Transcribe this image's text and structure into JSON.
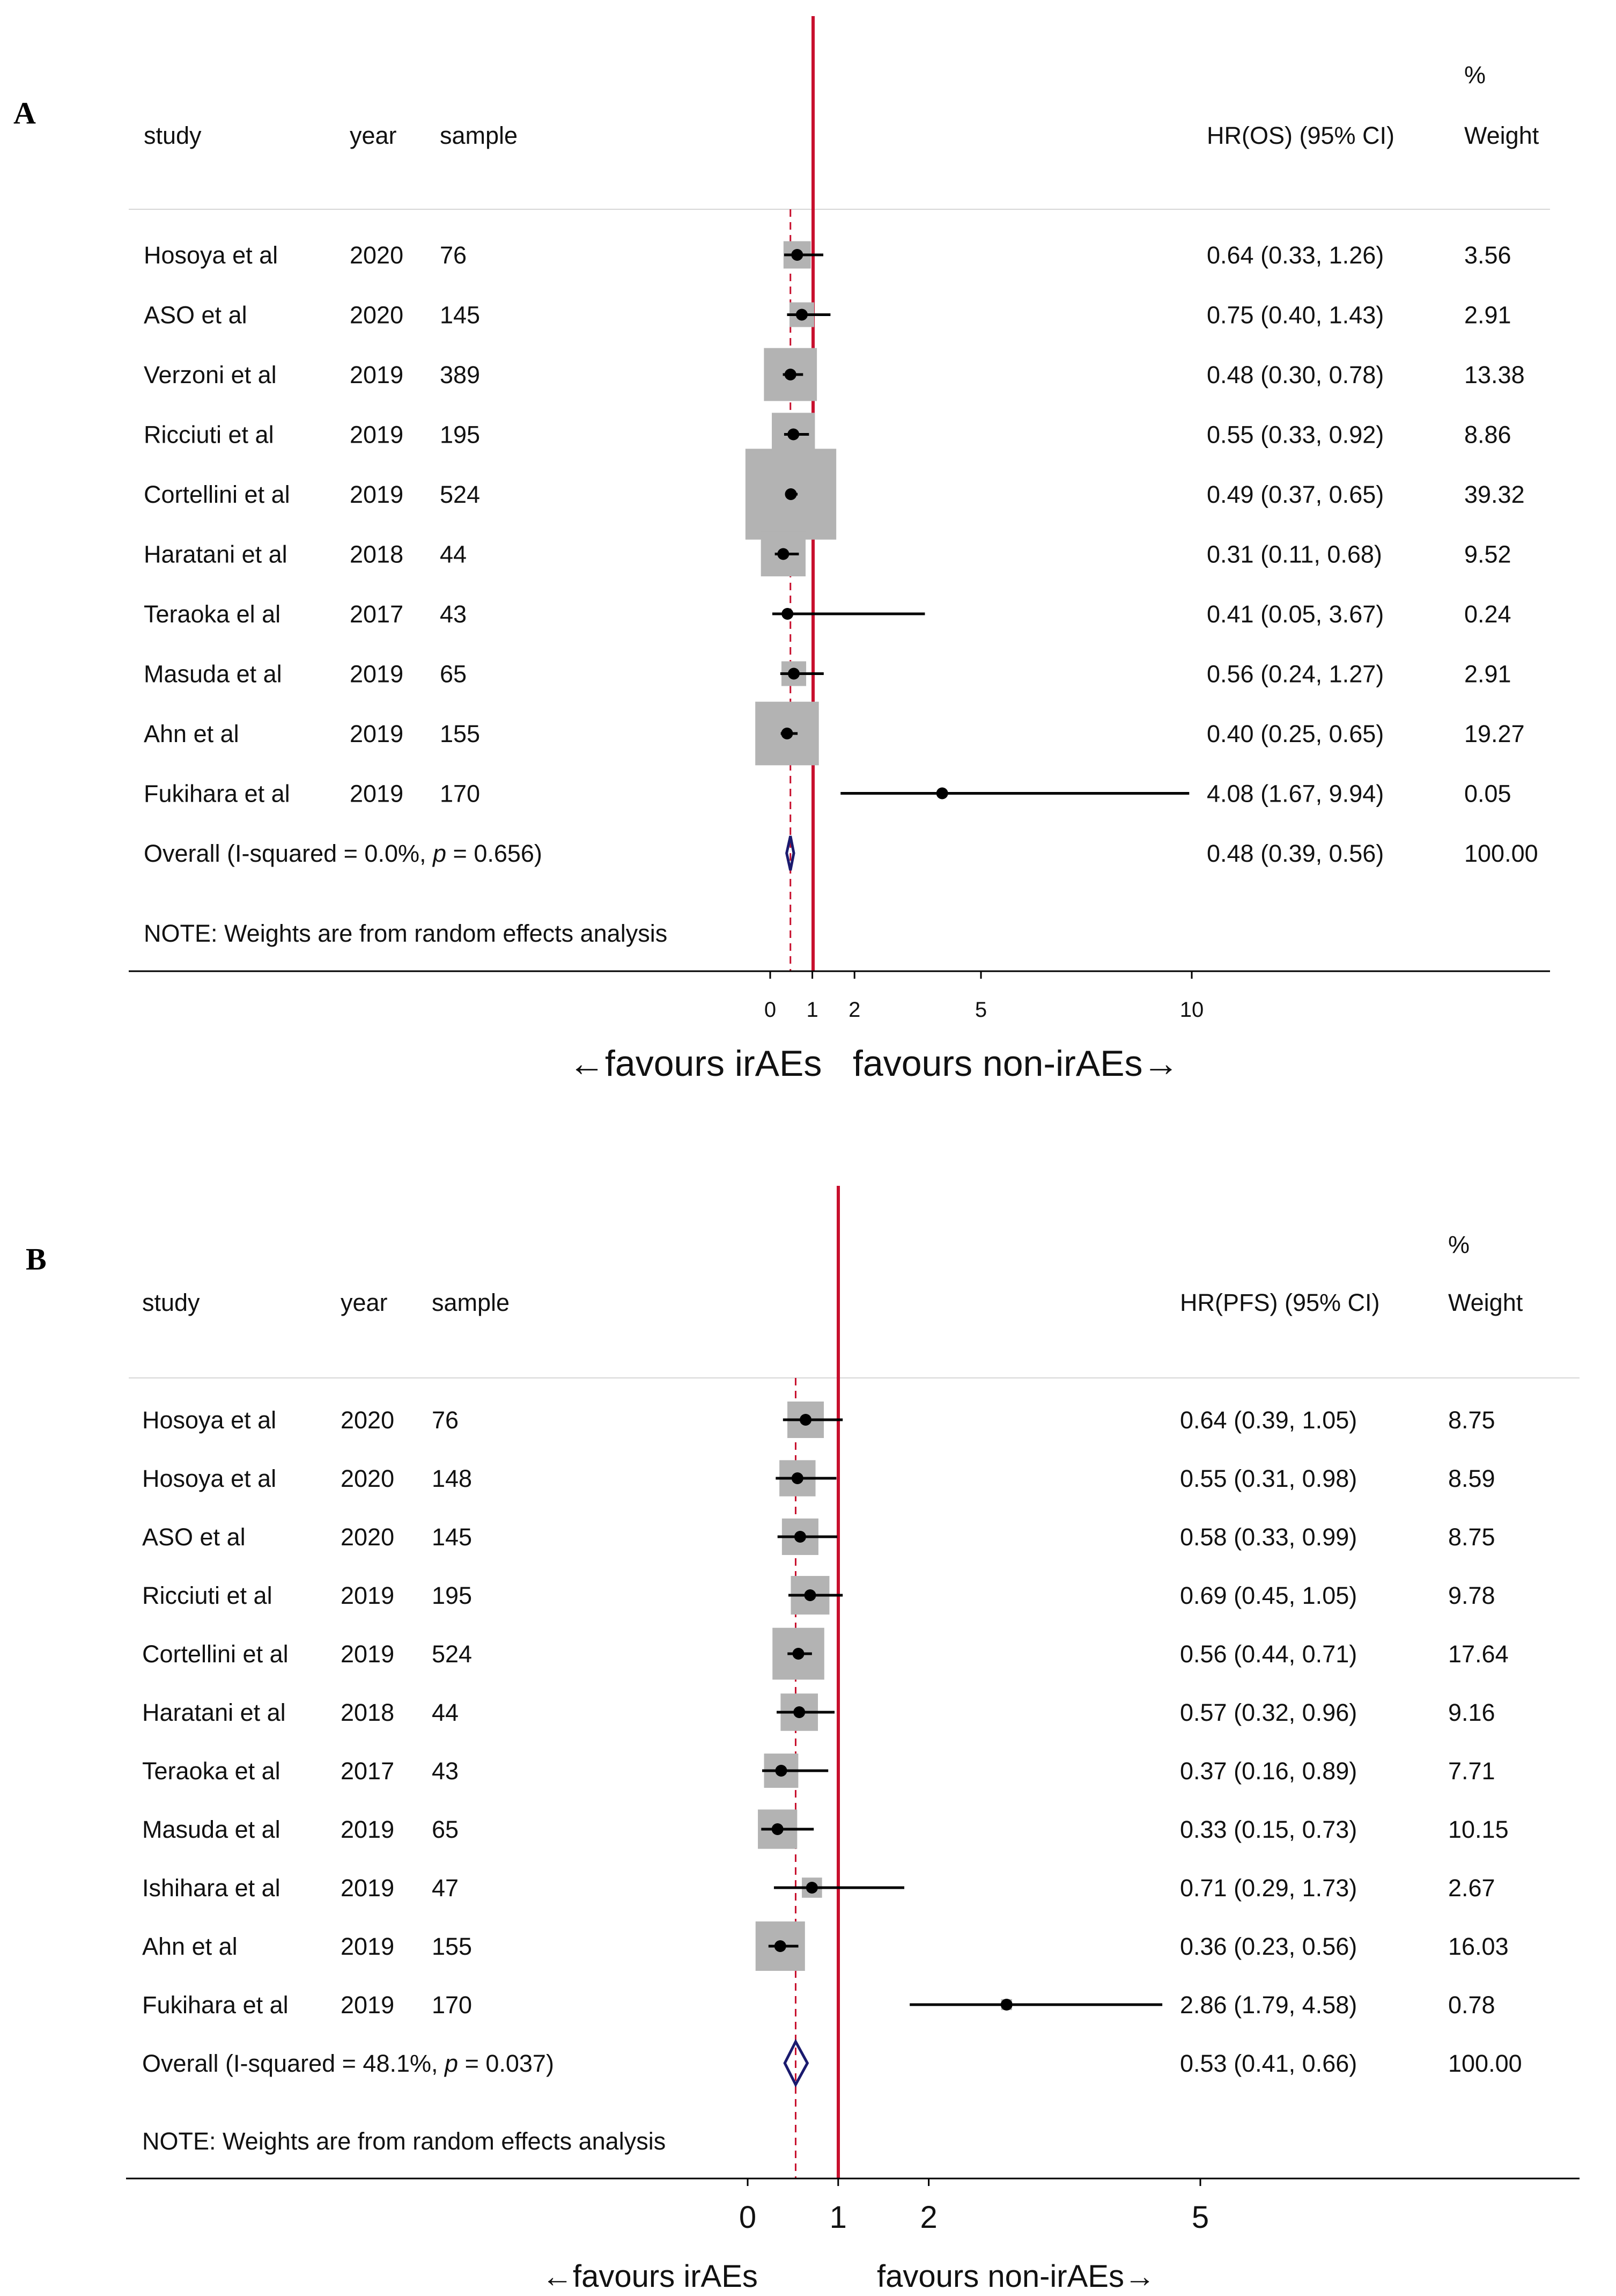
{
  "colors": {
    "null_line": "#c8102e",
    "overall_line": "#c8102e",
    "box": "#b3b3b3",
    "point": "#000000",
    "diamond": "#1a1a6e",
    "text": "#111111"
  },
  "chart_data": [
    {
      "type": "forest",
      "panel_label": "A",
      "header": {
        "study": "study",
        "year": "year",
        "sample": "sample",
        "estimate": "HR(OS) (95% CI)",
        "weight_line1": "%",
        "weight_line2": "Weight"
      },
      "rows": [
        {
          "study": "Hosoya et al",
          "year": "2020",
          "sample": "76",
          "hr": 0.64,
          "lower": 0.33,
          "upper": 1.26,
          "ci_text": "0.64 (0.33, 1.26)",
          "weight": 3.56,
          "weight_text": "3.56"
        },
        {
          "study": "ASO et al",
          "year": "2020",
          "sample": "145",
          "hr": 0.75,
          "lower": 0.4,
          "upper": 1.43,
          "ci_text": "0.75 (0.40, 1.43)",
          "weight": 2.91,
          "weight_text": "2.91"
        },
        {
          "study": "Verzoni et al",
          "year": "2019",
          "sample": "389",
          "hr": 0.48,
          "lower": 0.3,
          "upper": 0.78,
          "ci_text": "0.48 (0.30, 0.78)",
          "weight": 13.38,
          "weight_text": "13.38"
        },
        {
          "study": "Ricciuti et al",
          "year": "2019",
          "sample": "195",
          "hr": 0.55,
          "lower": 0.33,
          "upper": 0.92,
          "ci_text": "0.55 (0.33, 0.92)",
          "weight": 8.86,
          "weight_text": "8.86"
        },
        {
          "study": "Cortellini et al",
          "year": "2019",
          "sample": "524",
          "hr": 0.49,
          "lower": 0.37,
          "upper": 0.65,
          "ci_text": "0.49 (0.37, 0.65)",
          "weight": 39.32,
          "weight_text": "39.32"
        },
        {
          "study": "Haratani et al",
          "year": "2018",
          "sample": "44",
          "hr": 0.31,
          "lower": 0.11,
          "upper": 0.68,
          "ci_text": "0.31 (0.11, 0.68)",
          "weight": 9.52,
          "weight_text": "9.52"
        },
        {
          "study": "Teraoka el al",
          "year": "2017",
          "sample": "43",
          "hr": 0.41,
          "lower": 0.05,
          "upper": 3.67,
          "ci_text": "0.41 (0.05, 3.67)",
          "weight": 0.24,
          "weight_text": "0.24"
        },
        {
          "study": "Masuda et al",
          "year": "2019",
          "sample": "65",
          "hr": 0.56,
          "lower": 0.24,
          "upper": 1.27,
          "ci_text": "0.56 (0.24, 1.27)",
          "weight": 2.91,
          "weight_text": "2.91"
        },
        {
          "study": "Ahn et al",
          "year": "2019",
          "sample": "155",
          "hr": 0.4,
          "lower": 0.25,
          "upper": 0.65,
          "ci_text": "0.40 (0.25, 0.65)",
          "weight": 19.27,
          "weight_text": "19.27"
        },
        {
          "study": "Fukihara et al",
          "year": "2019",
          "sample": "170",
          "hr": 4.08,
          "lower": 1.67,
          "upper": 9.94,
          "ci_text": "4.08 (1.67, 9.94)",
          "weight": 0.05,
          "weight_text": "0.05"
        }
      ],
      "overall": {
        "label_prefix": "Overall  (I-squared = 0.0%, ",
        "label_p": "p",
        "label_suffix": " = 0.656)",
        "hr": 0.48,
        "lower": 0.39,
        "upper": 0.56,
        "ci_text": "0.48 (0.39, 0.56)",
        "weight_text": "100.00"
      },
      "note": "NOTE: Weights are from random effects analysis",
      "x_ticks": [
        "0",
        "1",
        "2",
        "5",
        "10"
      ],
      "x_tick_values": [
        0,
        1,
        2,
        5,
        10
      ],
      "xlim": [
        0,
        10
      ],
      "null_value": 1,
      "favours_left": "←favours irAEs",
      "favours_right": "favours non-irAEs→"
    },
    {
      "type": "forest",
      "panel_label": "B",
      "header": {
        "study": "study",
        "year": "year",
        "sample": "sample",
        "estimate": "HR(PFS) (95% CI)",
        "weight_line1": "%",
        "weight_line2": "Weight"
      },
      "rows": [
        {
          "study": "Hosoya et al",
          "year": "2020",
          "sample": "76",
          "hr": 0.64,
          "lower": 0.39,
          "upper": 1.05,
          "ci_text": "0.64 (0.39, 1.05)",
          "weight": 8.75,
          "weight_text": "8.75"
        },
        {
          "study": "Hosoya et al",
          "year": "2020",
          "sample": "148",
          "hr": 0.55,
          "lower": 0.31,
          "upper": 0.98,
          "ci_text": "0.55 (0.31, 0.98)",
          "weight": 8.59,
          "weight_text": "8.59"
        },
        {
          "study": "ASO et al",
          "year": "2020",
          "sample": "145",
          "hr": 0.58,
          "lower": 0.33,
          "upper": 0.99,
          "ci_text": "0.58 (0.33, 0.99)",
          "weight": 8.75,
          "weight_text": "8.75"
        },
        {
          "study": "Ricciuti et al",
          "year": "2019",
          "sample": "195",
          "hr": 0.69,
          "lower": 0.45,
          "upper": 1.05,
          "ci_text": "0.69 (0.45, 1.05)",
          "weight": 9.78,
          "weight_text": "9.78"
        },
        {
          "study": "Cortellini et al",
          "year": "2019",
          "sample": "524",
          "hr": 0.56,
          "lower": 0.44,
          "upper": 0.71,
          "ci_text": "0.56 (0.44, 0.71)",
          "weight": 17.64,
          "weight_text": "17.64"
        },
        {
          "study": "Haratani et al",
          "year": "2018",
          "sample": "44",
          "hr": 0.57,
          "lower": 0.32,
          "upper": 0.96,
          "ci_text": "0.57 (0.32, 0.96)",
          "weight": 9.16,
          "weight_text": "9.16"
        },
        {
          "study": "Teraoka et al",
          "year": "2017",
          "sample": "43",
          "hr": 0.37,
          "lower": 0.16,
          "upper": 0.89,
          "ci_text": "0.37 (0.16, 0.89)",
          "weight": 7.71,
          "weight_text": "7.71"
        },
        {
          "study": "Masuda et al",
          "year": "2019",
          "sample": "65",
          "hr": 0.33,
          "lower": 0.15,
          "upper": 0.73,
          "ci_text": "0.33 (0.15, 0.73)",
          "weight": 10.15,
          "weight_text": "10.15"
        },
        {
          "study": "Ishihara et al",
          "year": "2019",
          "sample": "47",
          "hr": 0.71,
          "lower": 0.29,
          "upper": 1.73,
          "ci_text": "0.71 (0.29, 1.73)",
          "weight": 2.67,
          "weight_text": "2.67"
        },
        {
          "study": "Ahn et al",
          "year": "2019",
          "sample": "155",
          "hr": 0.36,
          "lower": 0.23,
          "upper": 0.56,
          "ci_text": "0.36 (0.23, 0.56)",
          "weight": 16.03,
          "weight_text": "16.03"
        },
        {
          "study": "Fukihara et al",
          "year": "2019",
          "sample": "170",
          "hr": 2.86,
          "lower": 1.79,
          "upper": 4.58,
          "ci_text": "2.86 (1.79, 4.58)",
          "weight": 0.78,
          "weight_text": "0.78"
        }
      ],
      "overall": {
        "label_prefix": "Overall  (I-squared = 48.1%, ",
        "label_p": "p",
        "label_suffix": " = 0.037)",
        "hr": 0.53,
        "lower": 0.41,
        "upper": 0.66,
        "ci_text": "0.53 (0.41, 0.66)",
        "weight_text": "100.00"
      },
      "note": "NOTE: Weights are from random effects analysis",
      "x_ticks": [
        "0",
        "1",
        "2",
        "5"
      ],
      "x_tick_values": [
        0,
        1,
        2,
        5
      ],
      "xlim": [
        0,
        5
      ],
      "null_value": 1,
      "favours_left": "←favours irAEs",
      "favours_right": "favours non-irAEs→"
    }
  ]
}
